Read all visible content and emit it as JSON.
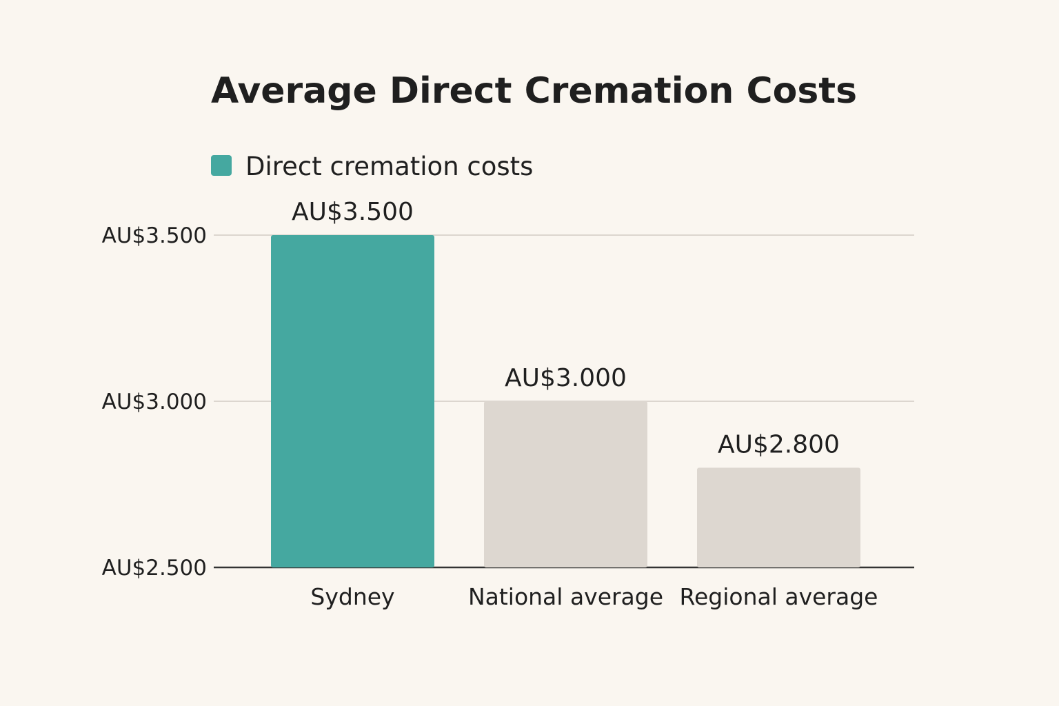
{
  "chart_data": {
    "type": "bar",
    "title": "Average Direct Cremation Costs",
    "legend": {
      "entries": [
        "Direct cremation costs"
      ],
      "placement": "top-left"
    },
    "categories": [
      "Sydney",
      "National average",
      "Regional average"
    ],
    "values": [
      3500,
      3000,
      2800
    ],
    "data_labels": [
      "AU$3.500",
      "AU$3.000",
      "AU$2.800"
    ],
    "xlabel": "",
    "ylabel": "",
    "ylim": [
      2500,
      3500
    ],
    "yticks": [
      2500,
      3000,
      3500
    ],
    "ytick_labels": [
      "AU$2.500",
      "AU$3.000",
      "AU$3.500"
    ],
    "grid": true,
    "colors": {
      "highlight": "#45a8a0",
      "other": "#ddd7d0",
      "background": "#faf6f0",
      "grid": "#dcd6cf",
      "axis": "#333333"
    },
    "highlight_index": 0
  }
}
